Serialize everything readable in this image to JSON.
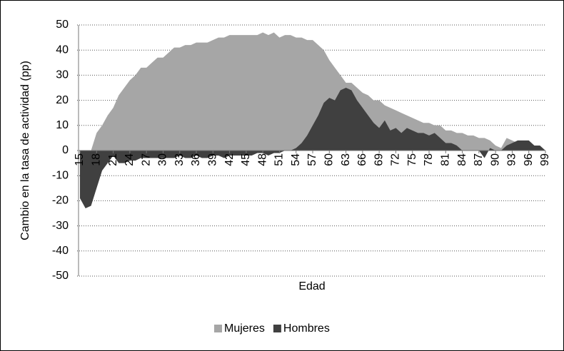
{
  "chart_data": {
    "type": "area",
    "y_label": "Cambio en la tasa de actividad (pp)",
    "x_label": "Edad",
    "x": [
      15,
      16,
      17,
      18,
      19,
      20,
      21,
      22,
      23,
      24,
      25,
      26,
      27,
      28,
      29,
      30,
      31,
      32,
      33,
      34,
      35,
      36,
      37,
      38,
      39,
      40,
      41,
      42,
      43,
      44,
      45,
      46,
      47,
      48,
      49,
      50,
      51,
      52,
      53,
      54,
      55,
      56,
      57,
      58,
      59,
      60,
      61,
      62,
      63,
      64,
      65,
      66,
      67,
      68,
      69,
      70,
      71,
      72,
      73,
      74,
      75,
      76,
      77,
      78,
      79,
      80,
      81,
      82,
      83,
      84,
      85,
      86,
      87,
      88,
      89,
      90,
      91,
      92,
      93,
      94,
      95,
      96,
      97,
      98,
      99
    ],
    "xlim": [
      15,
      99
    ],
    "xticks": [
      15,
      18,
      21,
      24,
      27,
      30,
      33,
      36,
      39,
      42,
      45,
      48,
      51,
      54,
      57,
      60,
      63,
      66,
      69,
      72,
      75,
      78,
      81,
      84,
      87,
      90,
      93,
      96,
      99
    ],
    "ylim": [
      -50,
      50
    ],
    "yticks": [
      -50,
      -40,
      -30,
      -20,
      -10,
      0,
      10,
      20,
      30,
      40,
      50
    ],
    "grid": true,
    "legend": "bottom",
    "series": [
      {
        "name": "Mujeres",
        "color": "#a6a6a6",
        "values": [
          0,
          0,
          0,
          7,
          10,
          14,
          17,
          22,
          25,
          28,
          30,
          33,
          33,
          35,
          37,
          37,
          39,
          41,
          41,
          42,
          42,
          43,
          43,
          43,
          44,
          45,
          45,
          46,
          46,
          46,
          46,
          46,
          46,
          47,
          46,
          47,
          45,
          46,
          46,
          45,
          45,
          44,
          44,
          42,
          40,
          36,
          33,
          30,
          27,
          27,
          25,
          23,
          22,
          20,
          20,
          18,
          17,
          16,
          15,
          14,
          13,
          12,
          11,
          11,
          10,
          10,
          8,
          8,
          7,
          7,
          6,
          6,
          5,
          5,
          4,
          2,
          1,
          5,
          4,
          3,
          3,
          2,
          2,
          1,
          0
        ]
      },
      {
        "name": "Hombres",
        "color": "#404040",
        "values": [
          -19,
          -23,
          -22,
          -15,
          -8,
          -5,
          -2,
          -5,
          -5,
          -4,
          -4,
          -3,
          -3,
          -3,
          -3,
          -3,
          -3,
          -3,
          -2,
          -3,
          -3,
          -2,
          -3,
          -3,
          -2,
          -2,
          -3,
          -2,
          -2,
          -2,
          -2,
          -2,
          -1,
          -1,
          -2,
          -1,
          -1,
          0,
          0,
          1,
          3,
          6,
          10,
          14,
          19,
          21,
          20,
          24,
          25,
          24,
          20,
          17,
          14,
          11,
          9,
          12,
          8,
          9,
          7,
          9,
          8,
          7,
          7,
          6,
          7,
          5,
          3,
          3,
          2,
          0,
          0,
          0,
          0,
          -3,
          1,
          0,
          0,
          2,
          3,
          4,
          4,
          4,
          2,
          2,
          0
        ]
      }
    ]
  }
}
